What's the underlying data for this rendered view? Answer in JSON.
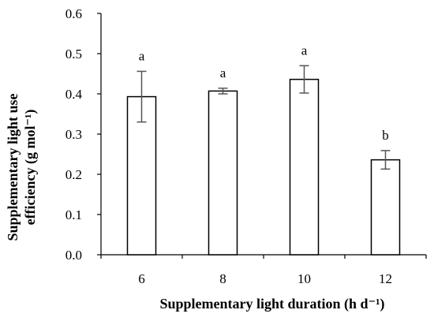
{
  "chart_data": {
    "type": "bar",
    "categories": [
      "6",
      "8",
      "10",
      "12"
    ],
    "values": [
      0.393,
      0.407,
      0.436,
      0.236
    ],
    "errors": [
      0.063,
      0.007,
      0.034,
      0.023
    ],
    "significance": [
      "a",
      "a",
      "a",
      "b"
    ],
    "xlabel": "Supplementary light duration (h d⁻¹)",
    "ylabel_line1": "Supplementary light use",
    "ylabel_line2": "efficiency (g mol⁻¹)",
    "ylim": [
      0,
      0.6
    ],
    "yticks": [
      "0.0",
      "0.1",
      "0.2",
      "0.3",
      "0.4",
      "0.5",
      "0.6"
    ],
    "grid": false,
    "colors": {
      "bar_fill": "#ffffff",
      "bar_stroke": "#000000",
      "error_bar": "#555555"
    }
  }
}
